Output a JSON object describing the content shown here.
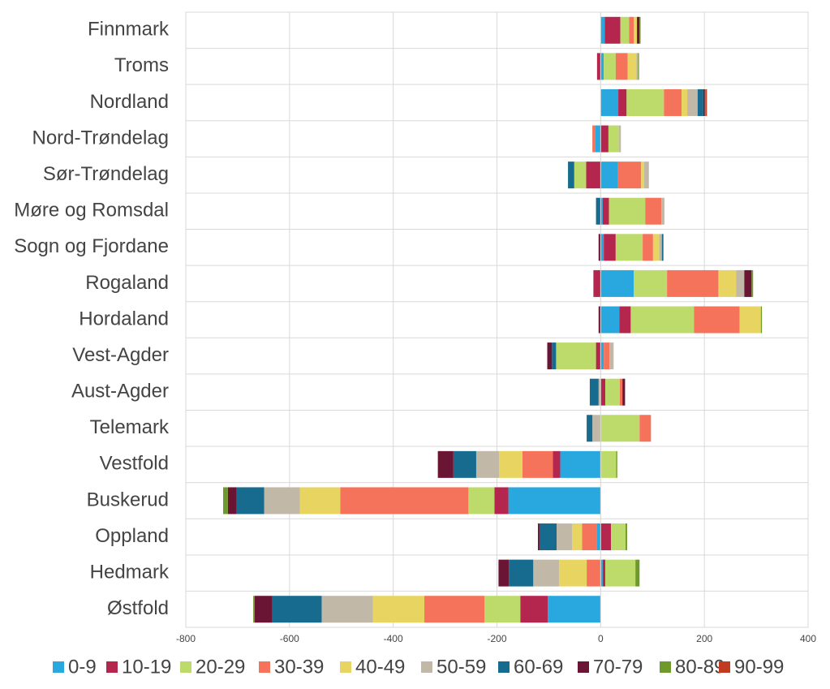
{
  "chart_data": {
    "type": "diverging-stacked-bar",
    "categories": [
      "Finnmark",
      "Troms",
      "Nordland",
      "Nord-Trøndelag",
      "Sør-Trøndelag",
      "Møre og Romsdal",
      "Sogn og Fjordane",
      "Rogaland",
      "Hordaland",
      "Vest-Agder",
      "Aust-Agder",
      "Telemark",
      "Vestfold",
      "Buskerud",
      "Oppland",
      "Hedmark",
      "Østfold"
    ],
    "series": [
      {
        "name": "0-9",
        "color": "#29a8e0",
        "values": [
          8,
          6,
          34,
          -11,
          33,
          4,
          6,
          64,
          36,
          6,
          0,
          0,
          -78,
          -178,
          -8,
          4,
          -102
        ]
      },
      {
        "name": "10-19",
        "color": "#b5264f",
        "values": [
          30,
          -7,
          16,
          15,
          -28,
          12,
          23,
          -14,
          22,
          -9,
          9,
          0,
          -14,
          -27,
          20,
          5,
          -53
        ]
      },
      {
        "name": "20-29",
        "color": "#bcdb6a",
        "values": [
          17,
          23,
          72,
          20,
          -23,
          70,
          52,
          64,
          122,
          -77,
          28,
          75,
          30,
          -50,
          28,
          58,
          -69
        ]
      },
      {
        "name": "30-39",
        "color": "#f4735a",
        "values": [
          9,
          23,
          34,
          -5,
          45,
          31,
          20,
          99,
          88,
          11,
          5,
          22,
          -59,
          -247,
          -28,
          -27,
          -116
        ]
      },
      {
        "name": "40-49",
        "color": "#e8d460",
        "values": [
          6,
          17,
          11,
          0,
          6,
          0,
          12,
          34,
          41,
          0,
          0,
          0,
          -45,
          -78,
          -19,
          -53,
          -99
        ]
      },
      {
        "name": "50-59",
        "color": "#c1b8a8",
        "values": [
          0,
          3,
          20,
          4,
          9,
          6,
          5,
          16,
          0,
          8,
          -4,
          -16,
          -44,
          -69,
          -30,
          -50,
          -99
        ]
      },
      {
        "name": "60-69",
        "color": "#176b8f",
        "values": [
          0,
          0,
          11,
          0,
          -12,
          -9,
          3,
          0,
          0,
          -8,
          -17,
          -11,
          -44,
          -53,
          -33,
          -47,
          -95
        ]
      },
      {
        "name": "70-79",
        "color": "#6b1535",
        "values": [
          5,
          0,
          3,
          0,
          0,
          0,
          -4,
          14,
          -4,
          -9,
          5,
          0,
          -30,
          -17,
          -3,
          -20,
          -34
        ]
      },
      {
        "name": "80-89",
        "color": "#6e9a2b",
        "values": [
          2,
          2,
          2,
          0,
          0,
          0,
          0,
          3,
          2,
          0,
          0,
          0,
          2,
          -9,
          3,
          8,
          -3
        ]
      },
      {
        "name": "90-99",
        "color": "#c23a1f",
        "values": [
          0,
          0,
          2,
          0,
          0,
          0,
          0,
          0,
          0,
          0,
          0,
          0,
          0,
          0,
          0,
          0,
          0
        ]
      }
    ],
    "xlim": [
      -800,
      400
    ],
    "xticks": [
      -800,
      -600,
      -400,
      -200,
      0,
      200,
      400
    ],
    "grid": true
  }
}
